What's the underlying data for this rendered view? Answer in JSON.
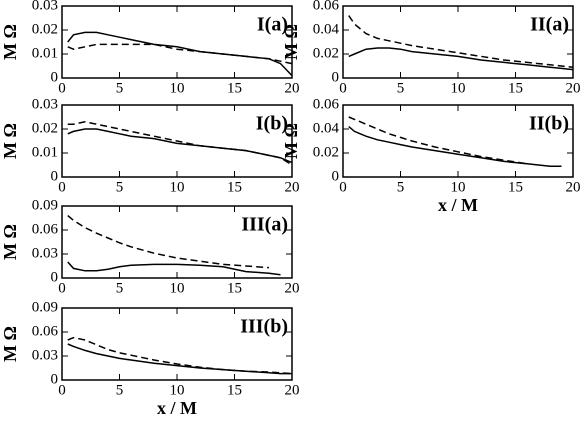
{
  "chart_data": [
    {
      "type": "line",
      "title": "I(a)",
      "ylabel": "M Ω",
      "x": [
        0.5,
        1,
        2,
        3,
        4,
        5,
        6,
        8,
        10,
        12,
        14,
        16,
        18,
        19,
        20
      ],
      "series": [
        {
          "color": "#000000",
          "style": "solid",
          "values": [
            0.015,
            0.018,
            0.019,
            0.019,
            0.018,
            0.017,
            0.016,
            0.014,
            0.013,
            0.011,
            0.01,
            0.009,
            0.008,
            0.006,
            0.001
          ]
        },
        {
          "color": "#000000",
          "style": "dashed",
          "values": [
            0.013,
            0.012,
            0.013,
            0.014,
            0.014,
            0.014,
            0.014,
            0.014,
            0.012,
            0.011,
            0.01,
            0.009,
            0.008,
            0.007,
            0.006
          ]
        }
      ],
      "xlim": [
        0,
        20
      ],
      "xticks": [
        0,
        5,
        10,
        15,
        20
      ],
      "ylim": [
        0,
        0.03
      ],
      "yticks": [
        0,
        0.01,
        0.02,
        0.03
      ]
    },
    {
      "type": "line",
      "title": "II(a)",
      "ylabel": "M Ω",
      "x": [
        0.5,
        1,
        2,
        3,
        4,
        5,
        6,
        8,
        10,
        12,
        14,
        16,
        18,
        19,
        20
      ],
      "series": [
        {
          "color": "#000000",
          "style": "solid",
          "values": [
            0.018,
            0.02,
            0.024,
            0.025,
            0.025,
            0.024,
            0.022,
            0.02,
            0.018,
            0.015,
            0.013,
            0.011,
            0.009,
            0.008,
            0.007
          ]
        },
        {
          "color": "#000000",
          "style": "dashed",
          "values": [
            0.052,
            0.045,
            0.037,
            0.033,
            0.031,
            0.029,
            0.027,
            0.024,
            0.021,
            0.018,
            0.015,
            0.013,
            0.011,
            0.01,
            0.009
          ]
        }
      ],
      "xlim": [
        0,
        20
      ],
      "xticks": [
        0,
        5,
        10,
        15,
        20
      ],
      "ylim": [
        0,
        0.06
      ],
      "yticks": [
        0,
        0.02,
        0.04,
        0.06
      ]
    },
    {
      "type": "line",
      "title": "I(b)",
      "ylabel": "M Ω",
      "x": [
        0.5,
        1,
        2,
        3,
        4,
        5,
        6,
        8,
        10,
        12,
        14,
        16,
        18,
        19,
        20
      ],
      "series": [
        {
          "color": "#000000",
          "style": "solid",
          "values": [
            0.018,
            0.019,
            0.02,
            0.02,
            0.019,
            0.018,
            0.017,
            0.016,
            0.014,
            0.013,
            0.012,
            0.011,
            0.009,
            0.008,
            0.006
          ]
        },
        {
          "color": "#000000",
          "style": "dashed",
          "values": [
            0.022,
            0.022,
            0.023,
            0.022,
            0.021,
            0.02,
            0.019,
            0.017,
            0.015,
            0.013,
            0.012,
            0.011,
            0.009,
            0.008,
            0.005
          ]
        }
      ],
      "xlim": [
        0,
        20
      ],
      "xticks": [
        0,
        5,
        10,
        15,
        20
      ],
      "ylim": [
        0,
        0.03
      ],
      "yticks": [
        0,
        0.01,
        0.02,
        0.03
      ]
    },
    {
      "type": "line",
      "title": "II(b)",
      "ylabel": "M Ω",
      "xlabel": "x / M",
      "x": [
        0.5,
        1,
        2,
        3,
        4,
        5,
        6,
        8,
        10,
        12,
        14,
        16,
        18,
        19,
        20
      ],
      "series": [
        {
          "color": "#000000",
          "style": "solid",
          "values": [
            0.042,
            0.038,
            0.034,
            0.031,
            0.029,
            0.027,
            0.025,
            0.022,
            0.019,
            0.016,
            0.013,
            0.011,
            0.009,
            0.009,
            null
          ]
        },
        {
          "color": "#000000",
          "style": "dashed",
          "values": [
            0.05,
            0.048,
            0.044,
            0.04,
            0.036,
            0.033,
            0.03,
            0.025,
            0.021,
            0.017,
            0.014,
            0.011,
            null,
            null,
            null
          ]
        }
      ],
      "xlim": [
        0,
        20
      ],
      "xticks": [
        0,
        5,
        10,
        15,
        20
      ],
      "ylim": [
        0,
        0.06
      ],
      "yticks": [
        0,
        0.02,
        0.04,
        0.06
      ]
    },
    {
      "type": "line",
      "title": "III(a)",
      "ylabel": "M Ω",
      "x": [
        0.5,
        1,
        2,
        3,
        4,
        5,
        6,
        8,
        10,
        12,
        14,
        16,
        18,
        19,
        20
      ],
      "series": [
        {
          "color": "#000000",
          "style": "solid",
          "values": [
            0.02,
            0.012,
            0.009,
            0.009,
            0.011,
            0.014,
            0.016,
            0.017,
            0.017,
            0.016,
            0.014,
            0.008,
            0.006,
            0.004,
            null
          ]
        },
        {
          "color": "#000000",
          "style": "dashed",
          "values": [
            0.078,
            0.072,
            0.063,
            0.056,
            0.05,
            0.044,
            0.039,
            0.031,
            0.025,
            0.021,
            0.017,
            0.015,
            0.013,
            null,
            null
          ]
        }
      ],
      "xlim": [
        0,
        20
      ],
      "xticks": [
        0,
        5,
        10,
        15,
        20
      ],
      "ylim": [
        0,
        0.09
      ],
      "yticks": [
        0,
        0.03,
        0.06,
        0.09
      ]
    },
    {
      "type": "line",
      "title": "III(b)",
      "ylabel": "M Ω",
      "xlabel": "x / M",
      "x": [
        0.5,
        1,
        2,
        3,
        4,
        5,
        6,
        8,
        10,
        12,
        14,
        16,
        18,
        19,
        20
      ],
      "series": [
        {
          "color": "#000000",
          "style": "solid",
          "values": [
            0.045,
            0.042,
            0.037,
            0.033,
            0.03,
            0.027,
            0.025,
            0.021,
            0.018,
            0.015,
            0.013,
            0.011,
            0.009,
            0.008,
            0.008
          ]
        },
        {
          "color": "#000000",
          "style": "dashed",
          "values": [
            0.05,
            0.053,
            0.05,
            0.044,
            0.038,
            0.034,
            0.031,
            0.025,
            0.02,
            0.016,
            0.013,
            0.011,
            0.01,
            0.009,
            0.008
          ]
        }
      ],
      "xlim": [
        0,
        20
      ],
      "xticks": [
        0,
        5,
        10,
        15,
        20
      ],
      "ylim": [
        0,
        0.09
      ],
      "yticks": [
        0,
        0.03,
        0.06,
        0.09
      ]
    }
  ]
}
